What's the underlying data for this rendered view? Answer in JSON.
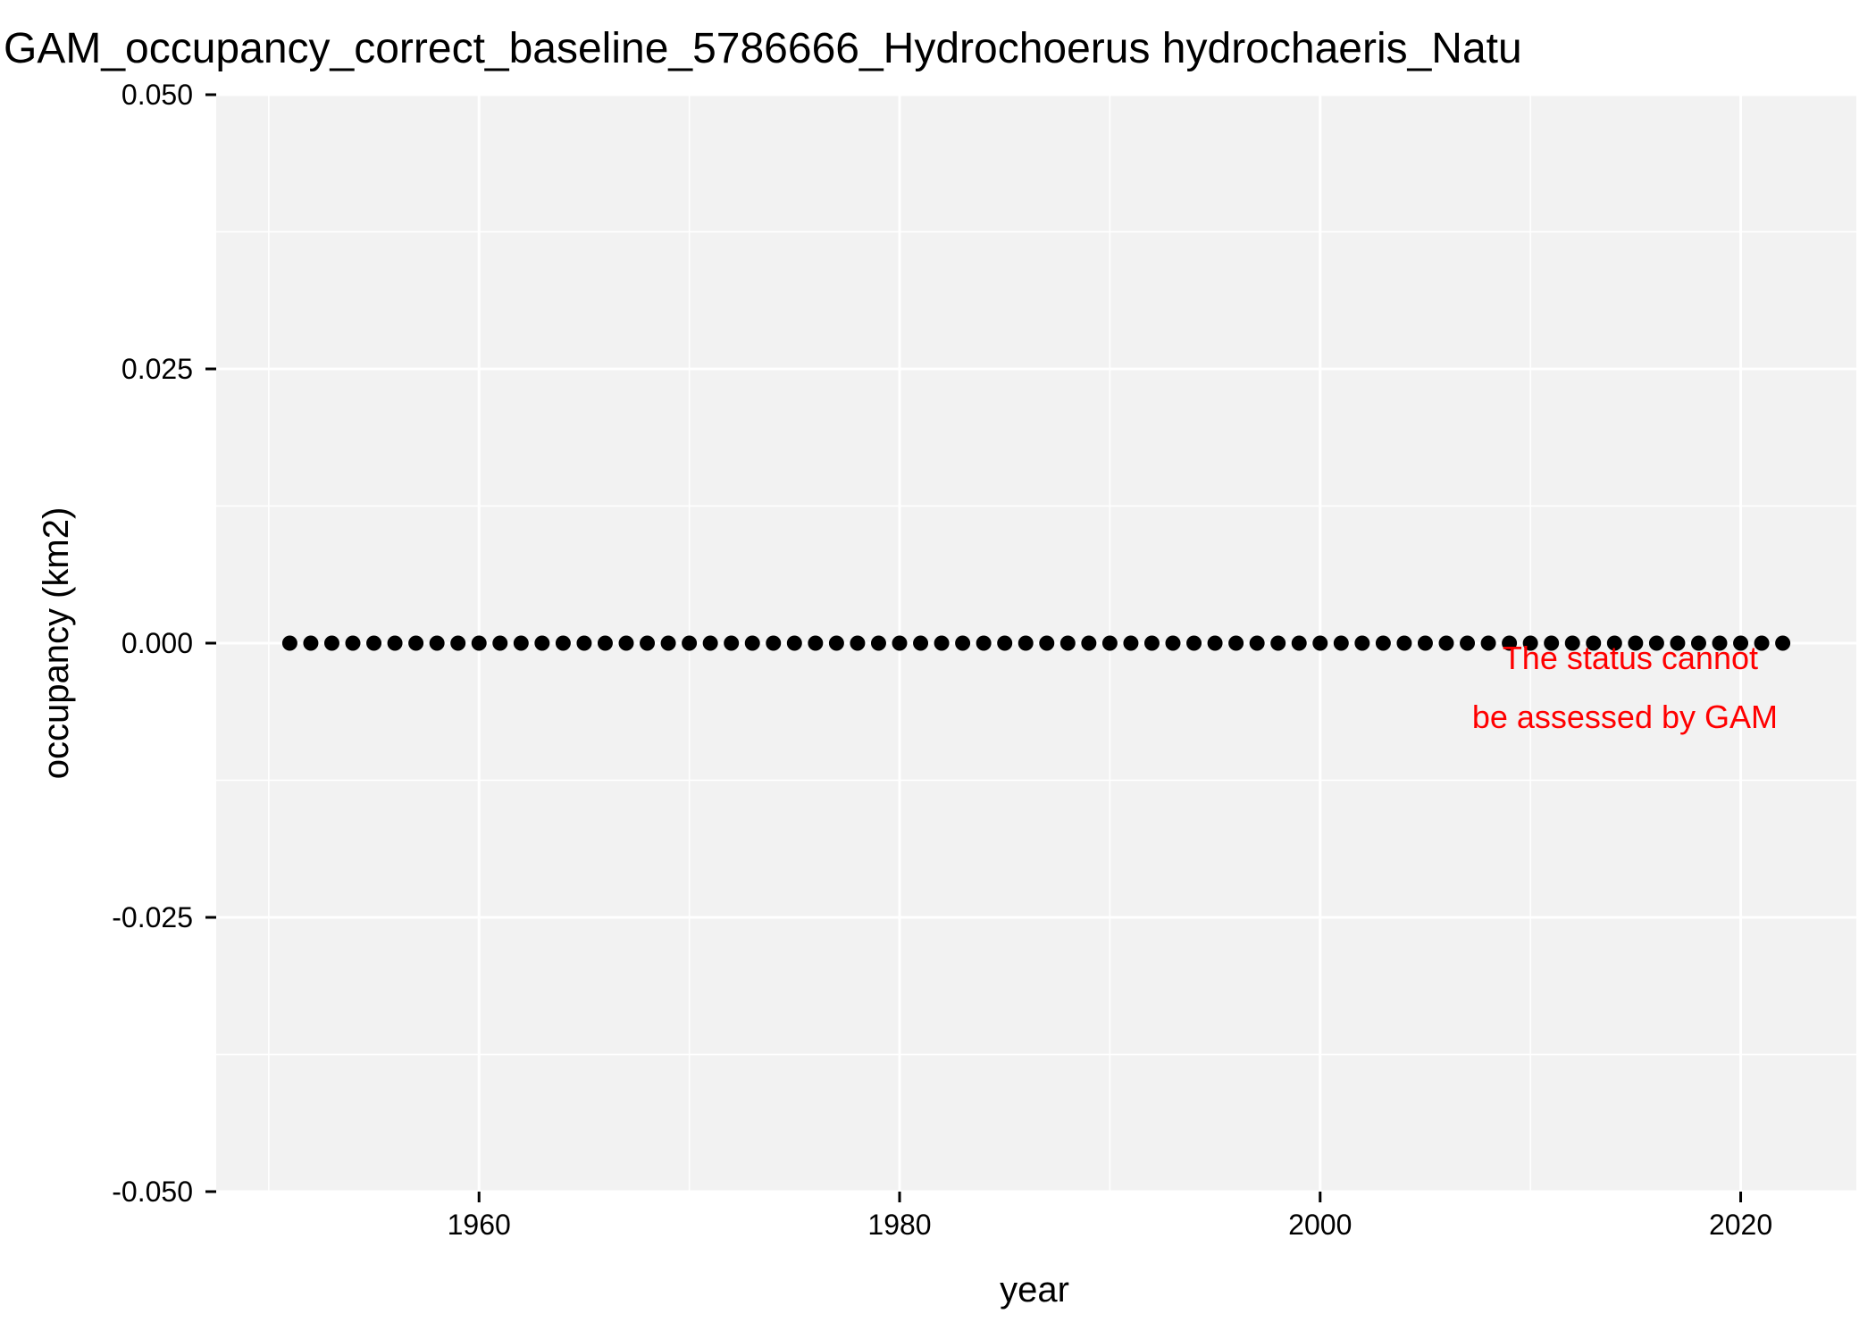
{
  "chart_data": {
    "type": "scatter",
    "title": "GAM_occupancy_correct_baseline_5786666_Hydrochoerus hydrochaeris_Natu",
    "xlabel": "year",
    "ylabel": "occupancy (km2)",
    "xlim": [
      1947.5,
      2025.5
    ],
    "ylim": [
      -0.05,
      0.05
    ],
    "x_ticks": [
      1960,
      1980,
      2000,
      2020
    ],
    "x_tick_labels": [
      "1960",
      "1980",
      "2000",
      "2020"
    ],
    "y_ticks": [
      -0.05,
      -0.025,
      0,
      0.025,
      0.05
    ],
    "y_tick_labels": [
      "-0.050",
      "-0.025",
      "0.000",
      "0.025",
      "0.050"
    ],
    "grid": true,
    "legend": "none",
    "point_color": "#000000",
    "background_color": "#f2f2f2",
    "series": [
      {
        "x": [
          1951,
          1952,
          1953,
          1954,
          1955,
          1956,
          1957,
          1958,
          1959,
          1960,
          1961,
          1962,
          1963,
          1964,
          1965,
          1966,
          1967,
          1968,
          1969,
          1970,
          1971,
          1972,
          1973,
          1974,
          1975,
          1976,
          1977,
          1978,
          1979,
          1980,
          1981,
          1982,
          1983,
          1984,
          1985,
          1986,
          1987,
          1988,
          1989,
          1990,
          1991,
          1992,
          1993,
          1994,
          1995,
          1996,
          1997,
          1998,
          1999,
          2000,
          2001,
          2002,
          2003,
          2004,
          2005,
          2006,
          2007,
          2008,
          2009,
          2010,
          2011,
          2012,
          2013,
          2014,
          2015,
          2016,
          2017,
          2018,
          2019,
          2020,
          2021,
          2022
        ],
        "values": [
          0,
          0,
          0,
          0,
          0,
          0,
          0,
          0,
          0,
          0,
          0,
          0,
          0,
          0,
          0,
          0,
          0,
          0,
          0,
          0,
          0,
          0,
          0,
          0,
          0,
          0,
          0,
          0,
          0,
          0,
          0,
          0,
          0,
          0,
          0,
          0,
          0,
          0,
          0,
          0,
          0,
          0,
          0,
          0,
          0,
          0,
          0,
          0,
          0,
          0,
          0,
          0,
          0,
          0,
          0,
          0,
          0,
          0,
          0,
          0,
          0,
          0,
          0,
          0,
          0,
          0,
          0,
          0,
          0,
          0,
          0,
          0
        ]
      }
    ],
    "annotations": [
      {
        "lines": [
          "The status cannot",
          "be assessed by GAM"
        ],
        "color": "#ff0000",
        "x": 2022,
        "y": 0
      }
    ]
  }
}
